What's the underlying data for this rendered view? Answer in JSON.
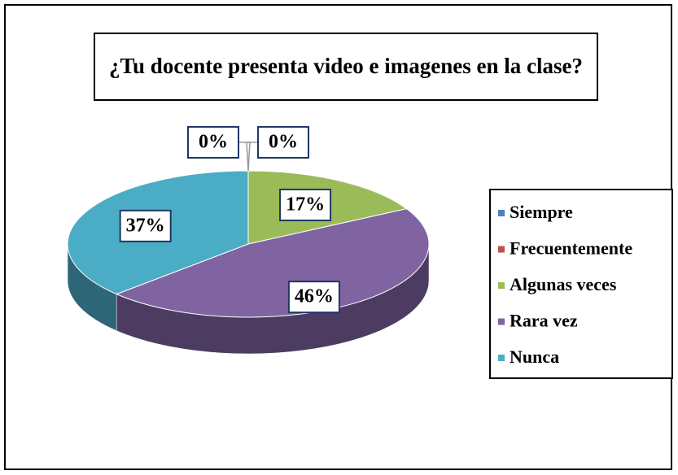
{
  "chart_data": {
    "type": "pie3d",
    "title": "¿Tu docente presenta video e imagenes en la clase?",
    "categories": [
      "Siempre",
      "Frecuentemente",
      "Algunas veces",
      "Rara vez",
      "Nunca"
    ],
    "series": [
      {
        "values": [
          0,
          0,
          17,
          46,
          37
        ],
        "value_labels": [
          "0%",
          "0%",
          "17%",
          "46%",
          "37%"
        ],
        "colors": [
          "#4f81bd",
          "#c0504d",
          "#9bbb59",
          "#8064a2",
          "#4bacc6"
        ]
      }
    ],
    "legend": "right"
  }
}
